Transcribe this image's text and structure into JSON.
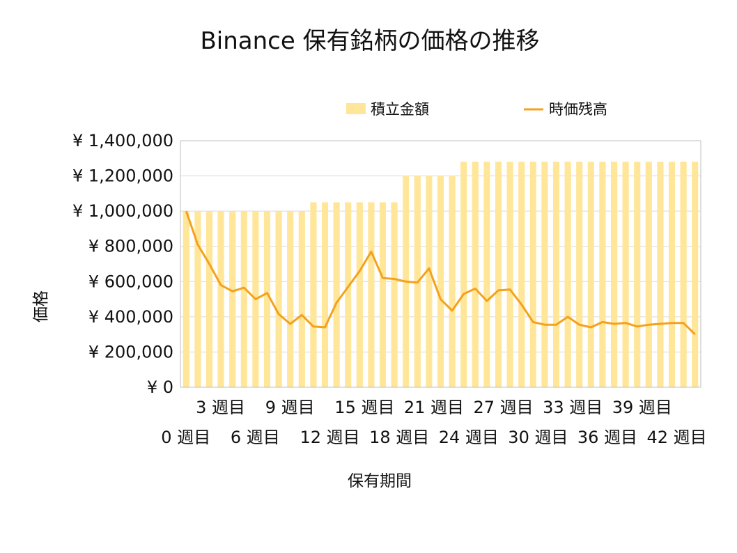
{
  "chart_data": {
    "type": "bar",
    "title": "Binance 保有銘柄の価格の推移",
    "xlabel": "保有期間",
    "ylabel": "価格",
    "ylim": [
      0,
      1400000
    ],
    "y_ticks": [
      "¥ 0",
      "¥ 200,000",
      "¥ 400,000",
      "¥ 600,000",
      "¥ 800,000",
      "¥ 1,000,000",
      "¥ 1,200,000",
      "¥ 1,400,000"
    ],
    "y_tick_values": [
      0,
      200000,
      400000,
      600000,
      800000,
      1000000,
      1200000,
      1400000
    ],
    "x_tick_labels": [
      "0 週目",
      "3 週目",
      "6 週目",
      "9 週目",
      "12 週目",
      "15 週目",
      "18 週目",
      "21 週目",
      "24 週目",
      "27 週目",
      "30 週目",
      "33 週目",
      "36 週目",
      "39 週目",
      "42 週目"
    ],
    "x_tick_weeks": [
      0,
      3,
      6,
      9,
      12,
      15,
      18,
      21,
      24,
      27,
      30,
      33,
      36,
      39,
      42
    ],
    "grid": true,
    "legend_position": "top-right",
    "colors": {
      "bar": "#FFE699",
      "line": "#F4A11D",
      "grid": "#D9D9D9",
      "axis": "#BFBFBF"
    },
    "series": [
      {
        "name": "積立金額",
        "kind": "bar",
        "values": [
          1000000,
          1000000,
          1000000,
          1000000,
          1000000,
          1000000,
          1000000,
          1000000,
          1000000,
          1000000,
          1000000,
          1050000,
          1050000,
          1050000,
          1050000,
          1050000,
          1050000,
          1050000,
          1050000,
          1200000,
          1200000,
          1200000,
          1200000,
          1200000,
          1280000,
          1280000,
          1280000,
          1280000,
          1280000,
          1280000,
          1280000,
          1280000,
          1280000,
          1280000,
          1280000,
          1280000,
          1280000,
          1280000,
          1280000,
          1280000,
          1280000,
          1280000,
          1280000,
          1280000,
          1280000
        ]
      },
      {
        "name": "時価残高",
        "kind": "line",
        "values": [
          1000000,
          810000,
          700000,
          580000,
          545000,
          565000,
          500000,
          535000,
          415000,
          360000,
          410000,
          345000,
          340000,
          480000,
          570000,
          660000,
          770000,
          620000,
          615000,
          600000,
          595000,
          675000,
          500000,
          435000,
          530000,
          560000,
          490000,
          550000,
          555000,
          470000,
          370000,
          355000,
          355000,
          400000,
          355000,
          340000,
          370000,
          360000,
          365000,
          345000,
          355000,
          360000,
          365000,
          365000,
          300000
        ]
      }
    ]
  }
}
